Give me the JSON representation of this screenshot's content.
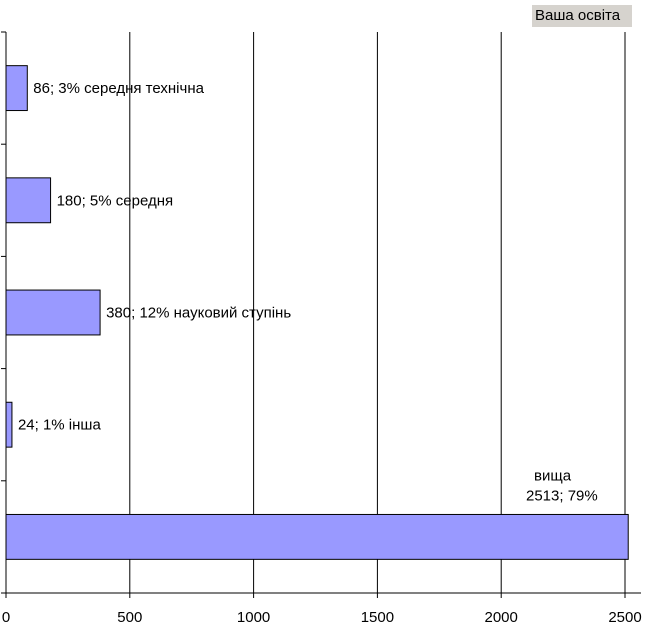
{
  "chart_data": {
    "type": "bar",
    "orientation": "horizontal",
    "title": "Ваша освіта",
    "xlim": [
      0,
      2500
    ],
    "x_ticks": [
      0,
      500,
      1000,
      1500,
      2000,
      2500
    ],
    "x_tick_labels": [
      "0",
      "500",
      "1000",
      "1500",
      "2000",
      "2500"
    ],
    "grid": "vertical",
    "bar_color": "#9999ff",
    "bars": [
      {
        "category": "середня технічна",
        "value": 86,
        "label": "86; 3% середня технічна"
      },
      {
        "category": "середня",
        "value": 180,
        "label": "180; 5% середня"
      },
      {
        "category": "науковий ступінь",
        "value": 380,
        "label": "380; 12% науковий ступінь"
      },
      {
        "category": "інша",
        "value": 24,
        "label": "24; 1% інша"
      },
      {
        "category": "вища",
        "value": 2513,
        "label_lines": [
          "вища",
          "2513; 79%"
        ]
      }
    ]
  }
}
